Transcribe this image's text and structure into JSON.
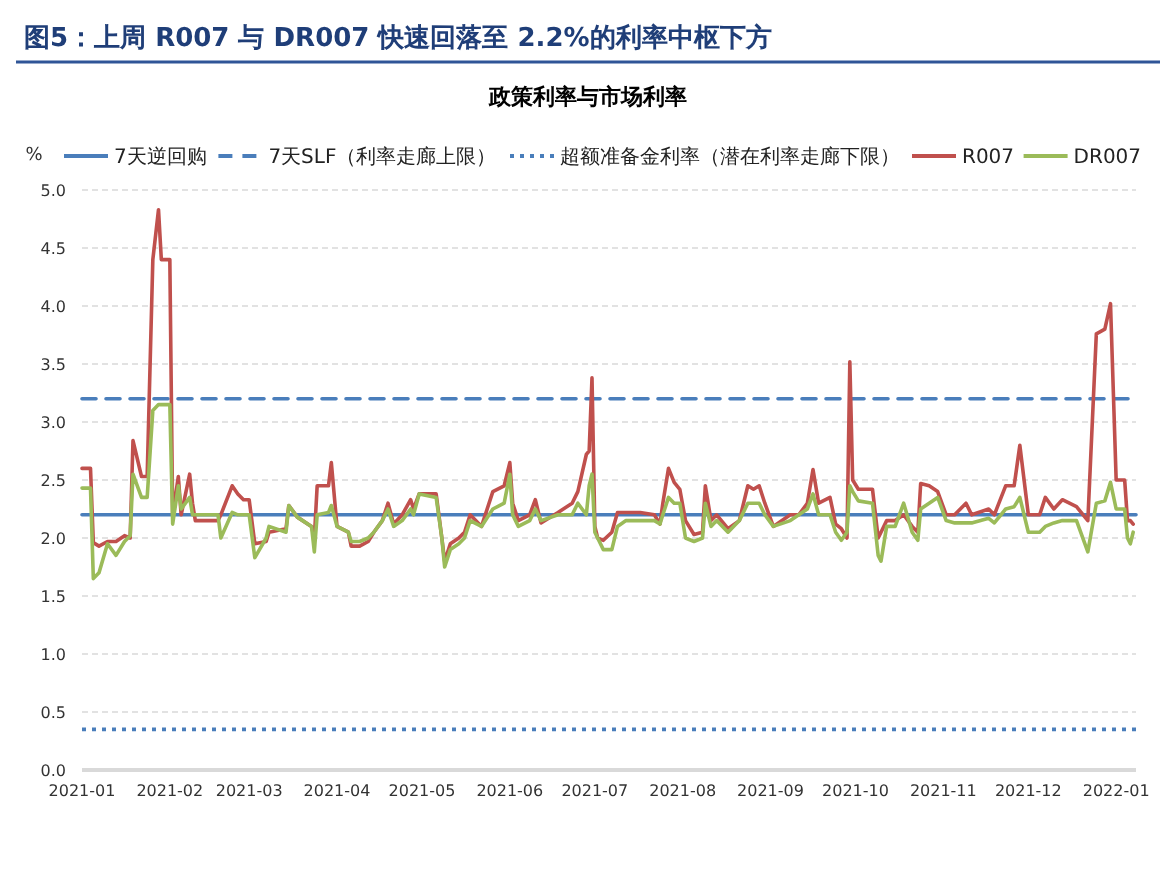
{
  "chart_data": {
    "type": "line",
    "title": "图5：上周 R007 与 DR007 快速回落至 2.2%的利率中枢下方",
    "subtitle": "政策利率与市场利率",
    "ylabel": "%",
    "xlim": [
      "2021-01-01",
      "2022-01-08"
    ],
    "xticks": [
      "2021-01",
      "2021-02",
      "2021-03",
      "2021-04",
      "2021-05",
      "2021-06",
      "2021-07",
      "2021-08",
      "2021-09",
      "2021-10",
      "2021-11",
      "2021-12",
      "2022-01"
    ],
    "ylim": [
      0,
      5
    ],
    "yticks": [
      {
        "value": 0,
        "label": "0.0"
      },
      {
        "value": 0.5,
        "label": "0.5"
      },
      {
        "value": 1,
        "label": "1.0"
      },
      {
        "value": 1.5,
        "label": "1.5"
      },
      {
        "value": 2,
        "label": "2.0"
      },
      {
        "value": 2.5,
        "label": "2.5"
      },
      {
        "value": 3,
        "label": "3.0"
      },
      {
        "value": 3.5,
        "label": "3.5"
      },
      {
        "value": 4,
        "label": "4.0"
      },
      {
        "value": 4.5,
        "label": "4.5"
      },
      {
        "value": 5,
        "label": "5.0"
      }
    ],
    "grid": "y",
    "legend": "top",
    "marker": "none",
    "x": [
      "2021-01-01",
      "2021-01-04",
      "2021-01-05",
      "2021-01-07",
      "2021-01-10",
      "2021-01-13",
      "2021-01-16",
      "2021-01-18",
      "2021-01-19",
      "2021-01-22",
      "2021-01-24",
      "2021-01-26",
      "2021-01-28",
      "2021-01-29",
      "2021-02-01",
      "2021-02-02",
      "2021-02-04",
      "2021-02-05",
      "2021-02-08",
      "2021-02-09",
      "2021-02-10",
      "2021-02-18",
      "2021-02-19",
      "2021-02-23",
      "2021-02-25",
      "2021-02-27",
      "2021-03-01",
      "2021-03-03",
      "2021-03-07",
      "2021-03-08",
      "2021-03-14",
      "2021-03-15",
      "2021-03-18",
      "2021-03-23",
      "2021-03-24",
      "2021-03-25",
      "2021-03-29",
      "2021-03-30",
      "2021-04-01",
      "2021-04-05",
      "2021-04-06",
      "2021-04-09",
      "2021-04-12",
      "2021-04-14",
      "2021-04-17",
      "2021-04-19",
      "2021-04-21",
      "2021-04-24",
      "2021-04-27",
      "2021-04-28",
      "2021-04-30",
      "2021-05-06",
      "2021-05-08",
      "2021-05-09",
      "2021-05-11",
      "2021-05-14",
      "2021-05-16",
      "2021-05-18",
      "2021-05-22",
      "2021-05-26",
      "2021-05-30",
      "2021-06-01",
      "2021-06-02",
      "2021-06-04",
      "2021-06-08",
      "2021-06-10",
      "2021-06-12",
      "2021-06-18",
      "2021-06-23",
      "2021-06-25",
      "2021-06-28",
      "2021-06-29",
      "2021-06-30",
      "2021-07-01",
      "2021-07-02",
      "2021-07-04",
      "2021-07-07",
      "2021-07-09",
      "2021-07-12",
      "2021-07-17",
      "2021-07-22",
      "2021-07-24",
      "2021-07-25",
      "2021-07-27",
      "2021-07-29",
      "2021-07-31",
      "2021-08-02",
      "2021-08-05",
      "2021-08-08",
      "2021-08-09",
      "2021-08-11",
      "2021-08-13",
      "2021-08-17",
      "2021-08-21",
      "2021-08-24",
      "2021-08-26",
      "2021-08-28",
      "2021-08-30",
      "2021-09-02",
      "2021-09-08",
      "2021-09-11",
      "2021-09-14",
      "2021-09-16",
      "2021-09-18",
      "2021-09-22",
      "2021-09-24",
      "2021-09-26",
      "2021-09-28",
      "2021-09-29",
      "2021-09-30",
      "2021-10-02",
      "2021-10-07",
      "2021-10-09",
      "2021-10-10",
      "2021-10-12",
      "2021-10-15",
      "2021-10-18",
      "2021-10-21",
      "2021-10-23",
      "2021-10-24",
      "2021-10-27",
      "2021-10-30",
      "2021-11-02",
      "2021-11-05",
      "2021-11-09",
      "2021-11-11",
      "2021-11-17",
      "2021-11-19",
      "2021-11-23",
      "2021-11-26",
      "2021-11-28",
      "2021-12-01",
      "2021-12-05",
      "2021-12-07",
      "2021-12-10",
      "2021-12-13",
      "2021-12-18",
      "2021-12-22",
      "2021-12-25",
      "2021-12-28",
      "2021-12-30",
      "2022-01-01",
      "2022-01-04",
      "2022-01-05",
      "2022-01-06",
      "2022-01-07"
    ],
    "series": [
      {
        "name": "7天逆回购",
        "color": "#4a7ebb",
        "line_style": "solid",
        "x": [
          "2021-01-01",
          "2022-01-08"
        ],
        "values": [
          2.2,
          2.2
        ]
      },
      {
        "name": "7天SLF（利率走廊上限）",
        "color": "#4a7ebb",
        "line_style": "dashed",
        "x": [
          "2021-01-01",
          "2022-01-08"
        ],
        "values": [
          3.2,
          3.2
        ]
      },
      {
        "name": "超额准备金利率（潜在利率走廊下限）",
        "color": "#4a7ebb",
        "line_style": "dotted",
        "x": [
          "2021-01-01",
          "2022-01-08"
        ],
        "values": [
          0.35,
          0.35
        ]
      },
      {
        "name": "R007",
        "color": "#c0504d",
        "line_style": "solid",
        "values": [
          2.6,
          2.6,
          1.96,
          1.93,
          1.97,
          1.97,
          2.02,
          2.0,
          2.84,
          2.53,
          2.53,
          4.4,
          4.83,
          4.4,
          4.4,
          2.2,
          2.53,
          2.2,
          2.55,
          2.3,
          2.15,
          2.15,
          2.2,
          2.45,
          2.38,
          2.33,
          2.33,
          1.95,
          1.97,
          2.05,
          2.08,
          2.28,
          2.18,
          2.1,
          2.0,
          2.45,
          2.45,
          2.65,
          2.1,
          2.05,
          1.93,
          1.93,
          1.97,
          2.05,
          2.15,
          2.3,
          2.12,
          2.2,
          2.33,
          2.25,
          2.38,
          2.38,
          2.0,
          1.8,
          1.95,
          2.0,
          2.05,
          2.2,
          2.1,
          2.4,
          2.45,
          2.65,
          2.3,
          2.15,
          2.2,
          2.33,
          2.13,
          2.22,
          2.3,
          2.4,
          2.72,
          2.75,
          3.38,
          2.1,
          2.0,
          1.98,
          2.05,
          2.22,
          2.22,
          2.22,
          2.2,
          2.12,
          2.3,
          2.6,
          2.48,
          2.42,
          2.15,
          2.03,
          2.05,
          2.45,
          2.15,
          2.2,
          2.08,
          2.15,
          2.45,
          2.42,
          2.45,
          2.3,
          2.1,
          2.2,
          2.2,
          2.3,
          2.59,
          2.3,
          2.35,
          2.12,
          2.08,
          2.0,
          3.52,
          2.5,
          2.42,
          2.42,
          2.0,
          2.05,
          2.15,
          2.15,
          2.2,
          2.1,
          2.05,
          2.47,
          2.45,
          2.4,
          2.2,
          2.2,
          2.3,
          2.2,
          2.25,
          2.2,
          2.45,
          2.45,
          2.8,
          2.2,
          2.2,
          2.35,
          2.25,
          2.33,
          2.27,
          2.15,
          3.76,
          3.8,
          4.02,
          2.5,
          2.5,
          2.15,
          2.15,
          2.12
        ]
      },
      {
        "name": "DR007",
        "color": "#9bbb59",
        "line_style": "solid",
        "values": [
          2.43,
          2.43,
          1.65,
          1.7,
          1.95,
          1.85,
          1.97,
          2.02,
          2.55,
          2.35,
          2.35,
          3.1,
          3.15,
          3.15,
          3.15,
          2.12,
          2.45,
          2.25,
          2.35,
          2.2,
          2.2,
          2.2,
          2.0,
          2.22,
          2.2,
          2.2,
          2.2,
          1.83,
          2.0,
          2.1,
          2.05,
          2.28,
          2.18,
          2.1,
          1.88,
          2.2,
          2.22,
          2.28,
          2.1,
          2.05,
          1.97,
          1.97,
          2.0,
          2.05,
          2.15,
          2.25,
          2.1,
          2.15,
          2.25,
          2.2,
          2.38,
          2.35,
          2.0,
          1.75,
          1.9,
          1.95,
          2.0,
          2.15,
          2.1,
          2.25,
          2.3,
          2.55,
          2.2,
          2.1,
          2.15,
          2.25,
          2.15,
          2.2,
          2.2,
          2.3,
          2.2,
          2.45,
          2.55,
          2.05,
          2.0,
          1.9,
          1.9,
          2.1,
          2.15,
          2.15,
          2.15,
          2.12,
          2.2,
          2.35,
          2.3,
          2.3,
          2.0,
          1.97,
          2.0,
          2.3,
          2.1,
          2.15,
          2.05,
          2.15,
          2.3,
          2.3,
          2.3,
          2.2,
          2.1,
          2.15,
          2.2,
          2.25,
          2.38,
          2.2,
          2.2,
          2.05,
          1.98,
          2.05,
          2.45,
          2.4,
          2.32,
          2.3,
          1.85,
          1.8,
          2.1,
          2.1,
          2.3,
          2.05,
          1.98,
          2.25,
          2.3,
          2.35,
          2.15,
          2.13,
          2.13,
          2.13,
          2.17,
          2.13,
          2.25,
          2.27,
          2.35,
          2.05,
          2.05,
          2.1,
          2.13,
          2.15,
          2.15,
          1.88,
          2.3,
          2.32,
          2.48,
          2.25,
          2.25,
          2.0,
          1.95,
          2.05
        ]
      }
    ]
  }
}
